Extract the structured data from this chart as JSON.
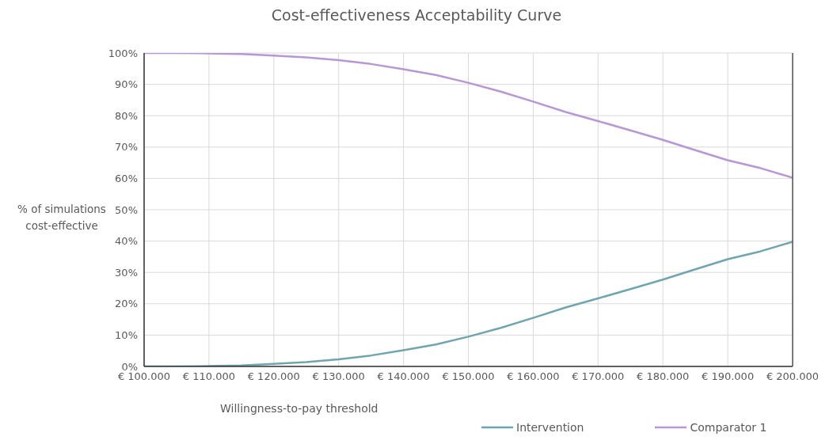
{
  "chart_data": {
    "type": "line",
    "title": "Cost-effectiveness Acceptability Curve",
    "xlabel": "Willingness-to-pay threshold",
    "ylabel": "% of simulations cost-effective",
    "x": [
      100000,
      105000,
      110000,
      115000,
      120000,
      125000,
      130000,
      135000,
      140000,
      145000,
      150000,
      155000,
      160000,
      165000,
      170000,
      175000,
      180000,
      185000,
      190000,
      195000,
      200000
    ],
    "series": [
      {
        "name": "Intervention",
        "color": "#6fa5ae",
        "values": [
          0,
          0,
          0.1,
          0.3,
          0.8,
          1.4,
          2.3,
          3.5,
          5.2,
          7,
          9.5,
          12.3,
          15.5,
          18.8,
          21.7,
          24.7,
          27.7,
          31,
          34.2,
          36.7,
          39.8
        ]
      },
      {
        "name": "Comparator 1",
        "color": "#b797d6",
        "values": [
          100,
          100,
          99.9,
          99.7,
          99.2,
          98.6,
          97.7,
          96.5,
          94.8,
          93,
          90.5,
          87.7,
          84.5,
          81.2,
          78.3,
          75.3,
          72.3,
          69,
          65.8,
          63.3,
          60.2
        ]
      }
    ],
    "xlim": [
      100000,
      200000
    ],
    "xticks": [
      {
        "value": 100000,
        "label": "€ 100.000"
      },
      {
        "value": 110000,
        "label": "€ 110.000"
      },
      {
        "value": 120000,
        "label": "€ 120.000"
      },
      {
        "value": 130000,
        "label": "€ 130.000"
      },
      {
        "value": 140000,
        "label": "€ 140.000"
      },
      {
        "value": 150000,
        "label": "€ 150.000"
      },
      {
        "value": 160000,
        "label": "€ 160.000"
      },
      {
        "value": 170000,
        "label": "€ 170.000"
      },
      {
        "value": 180000,
        "label": "€ 180.000"
      },
      {
        "value": 190000,
        "label": "€ 190.000"
      },
      {
        "value": 200000,
        "label": "€ 200.000"
      }
    ],
    "ylim": [
      0,
      100
    ],
    "yticks": [
      {
        "value": 0,
        "label": "0%"
      },
      {
        "value": 10,
        "label": "10%"
      },
      {
        "value": 20,
        "label": "20%"
      },
      {
        "value": 30,
        "label": "30%"
      },
      {
        "value": 40,
        "label": "40%"
      },
      {
        "value": 50,
        "label": "50%"
      },
      {
        "value": 60,
        "label": "60%"
      },
      {
        "value": 70,
        "label": "70%"
      },
      {
        "value": 80,
        "label": "80%"
      },
      {
        "value": 90,
        "label": "90%"
      },
      {
        "value": 100,
        "label": "100%"
      }
    ],
    "grid": true,
    "legend": "bottom",
    "marker": "none",
    "line_style": "solid"
  }
}
